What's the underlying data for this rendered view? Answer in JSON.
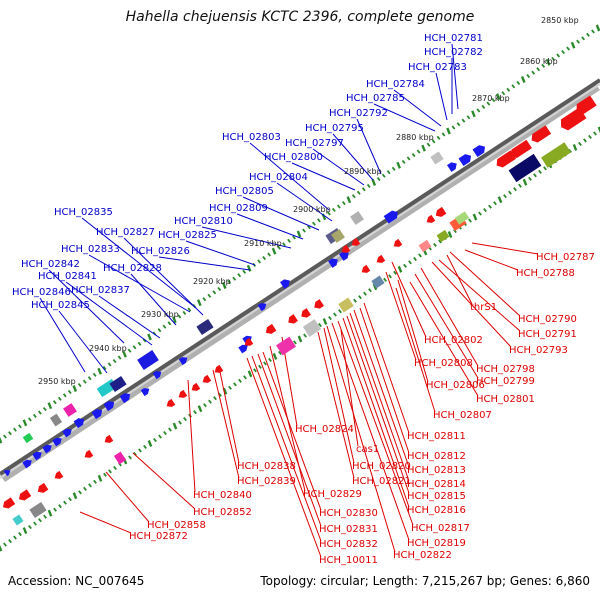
{
  "title": "Hahella chejuensis KCTC 2396, complete genome",
  "footer": {
    "accession": "Accession: NC_007645",
    "summary": "Topology: circular; Length: 7,215,267 bp; Genes: 6,860"
  },
  "colors": {
    "forward_label": "#0000cc",
    "reverse_label": "#dd0000",
    "backbone": "#9a9a9a",
    "tick": "#2a8a2a",
    "forward_feature": "#1a1aee",
    "reverse_feature": "#ee1111"
  },
  "kbp_ticks": [
    "2850 kbp",
    "2860 kbp",
    "2870 kbp",
    "2880 kbp",
    "2890 kbp",
    "2900 kbp",
    "2910 kbp",
    "2920 kbp",
    "2930 kbp",
    "2940 kbp",
    "2950 kbp"
  ],
  "forward_labels": [
    "HCH_02781",
    "HCH_02782",
    "HCH_02783",
    "HCH_02784",
    "HCH_02785",
    "HCH_02792",
    "HCH_02795",
    "HCH_02797",
    "HCH_02803",
    "HCH_02800",
    "HCH_02804",
    "HCH_02805",
    "HCH_02809",
    "HCH_02810",
    "HCH_02835",
    "HCH_02827",
    "HCH_02825",
    "HCH_02833",
    "HCH_02826",
    "HCH_02842",
    "HCH_02828",
    "HCH_02841",
    "HCH_02837",
    "HCH_02846",
    "HCH_02845"
  ],
  "reverse_labels": [
    "HCH_02787",
    "HCH_02788",
    "thrS1",
    "HCH_02790",
    "HCH_02791",
    "HCH_02793",
    "HCH_02802",
    "HCH_02798",
    "HCH_02808",
    "HCH_02799",
    "HCH_02806",
    "HCH_02801",
    "HCH_02807",
    "HCH_02824",
    "HCH_02811",
    "cas1",
    "HCH_02812",
    "HCH_02838",
    "HCH_02820",
    "HCH_02813",
    "HCH_02839",
    "HCH_02821",
    "HCH_02814",
    "HCH_02829",
    "HCH_02815",
    "HCH_02840",
    "HCH_02816",
    "HCH_02852",
    "HCH_02830",
    "HCH_02817",
    "HCH_02858",
    "HCH_02831",
    "HCH_02819",
    "HCH_02872",
    "HCH_02832",
    "HCH_02822",
    "HCH_10011"
  ]
}
